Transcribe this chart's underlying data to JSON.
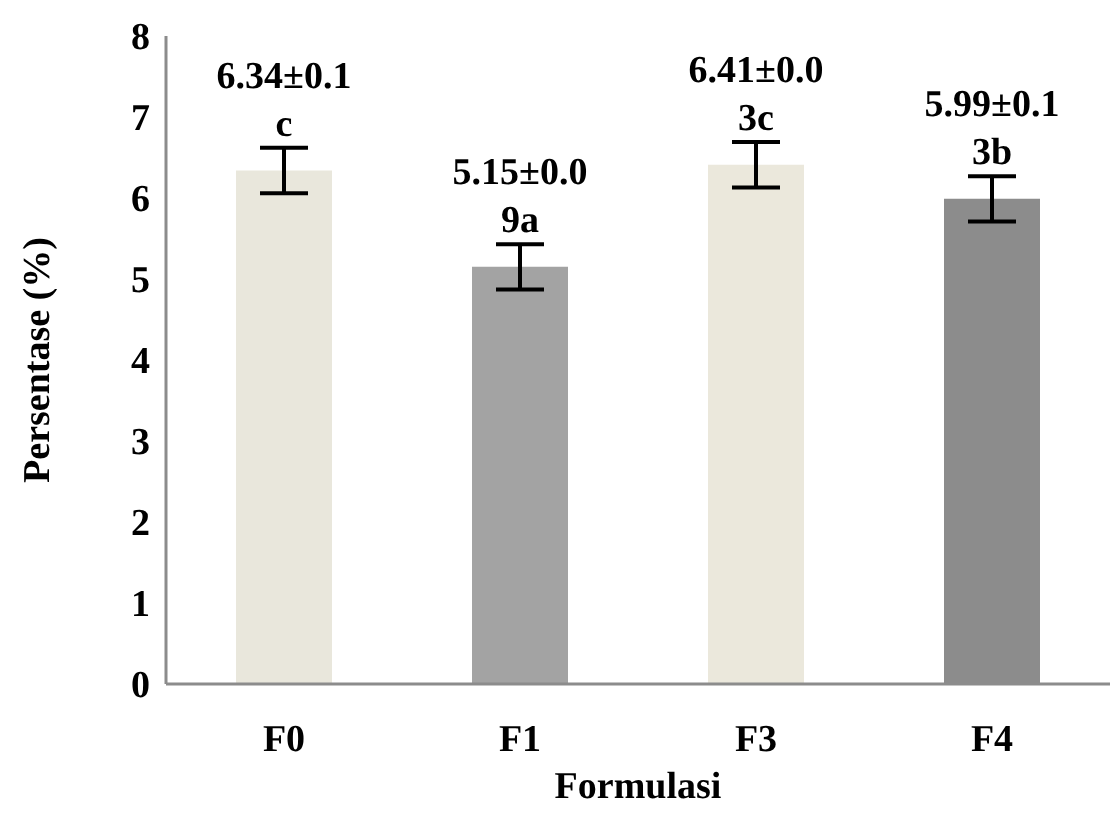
{
  "chart_data": {
    "type": "bar",
    "xlabel": "Formulasi",
    "ylabel": "Persentase (%)",
    "categories": [
      "F0",
      "F1",
      "F3",
      "F4"
    ],
    "values": [
      6.34,
      5.15,
      6.41,
      5.99
    ],
    "errors": [
      0.28,
      0.28,
      0.28,
      0.28
    ],
    "colors": [
      "#e9e7dc",
      "#a3a3a3",
      "#ebe8dc",
      "#8c8c8c"
    ],
    "value_labels": [
      "6.34±0.1\nc",
      "5.15±0.0\n9a",
      "6.41±0.0\n3c",
      "5.99±0.1\n3b"
    ],
    "ylim": [
      0,
      8
    ],
    "yticks": [
      0,
      1,
      2,
      3,
      4,
      5,
      6,
      7,
      8
    ],
    "grid": false,
    "legend": false
  }
}
